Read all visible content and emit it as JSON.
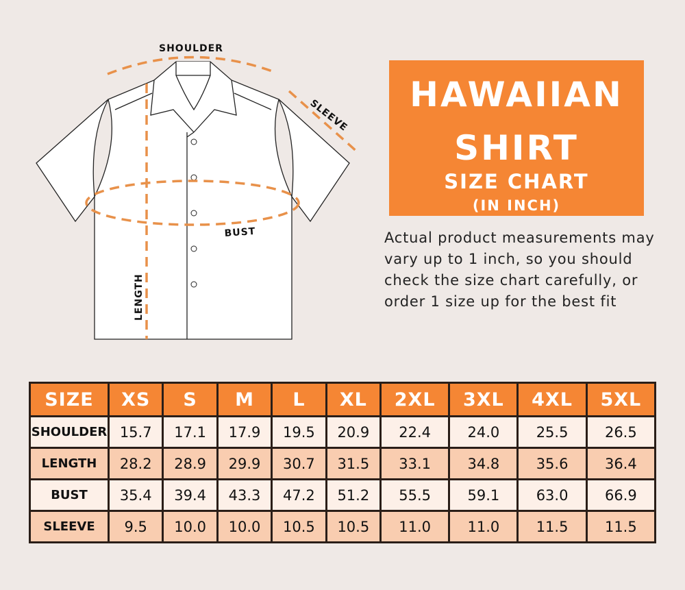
{
  "diagram": {
    "labels": {
      "shoulder": "SHOULDER",
      "sleeve": "SLEEVE",
      "bust": "BUST",
      "length": "LENGTH"
    }
  },
  "title": {
    "line1": "HAWAIIAN",
    "line2": "SHIRT",
    "line3": "SIZE CHART",
    "line4": "(IN INCH)"
  },
  "note": "Actual product measurements may vary up to 1 inch, so you should check the size chart carefully, or order 1 size up for the best fit",
  "colors": {
    "accent": "#f58634",
    "background": "#efe9e6",
    "row_light": "#fdf0e8",
    "row_dark": "#f9cdb0"
  },
  "table": {
    "headers": [
      "SIZE",
      "XS",
      "S",
      "M",
      "L",
      "XL",
      "2XL",
      "3XL",
      "4XL",
      "5XL"
    ],
    "rows": [
      {
        "label": "SHOULDER",
        "values": [
          "15.7",
          "17.1",
          "17.9",
          "19.5",
          "20.9",
          "22.4",
          "24.0",
          "25.5",
          "26.5"
        ]
      },
      {
        "label": "LENGTH",
        "values": [
          "28.2",
          "28.9",
          "29.9",
          "30.7",
          "31.5",
          "33.1",
          "34.8",
          "35.6",
          "36.4"
        ]
      },
      {
        "label": "BUST",
        "values": [
          "35.4",
          "39.4",
          "43.3",
          "47.2",
          "51.2",
          "55.5",
          "59.1",
          "63.0",
          "66.9"
        ]
      },
      {
        "label": "SLEEVE",
        "values": [
          "9.5",
          "10.0",
          "10.0",
          "10.5",
          "10.5",
          "11.0",
          "11.0",
          "11.5",
          "11.5"
        ]
      }
    ]
  }
}
